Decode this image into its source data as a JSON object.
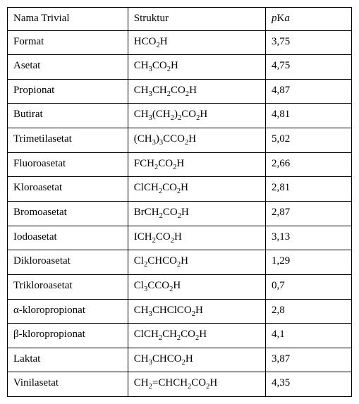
{
  "table": {
    "columns": [
      {
        "label": "Nama Trivial",
        "width_pct": 35,
        "align": "left"
      },
      {
        "label": "Struktur",
        "width_pct": 40,
        "align": "left"
      },
      {
        "label_html": "<span class='p-ital'>p</span>K<span class='a-ital'>a</span>",
        "width_pct": 25,
        "align": "left"
      }
    ],
    "rows": [
      {
        "name": "Format",
        "struct_html": "HCO<sub>2</sub>H",
        "pka": "3,75"
      },
      {
        "name": "Asetat",
        "struct_html": "CH<sub>3</sub>CO<sub>2</sub>H",
        "pka": "4,75"
      },
      {
        "name": "Propionat",
        "struct_html": "CH<sub>3</sub>CH<sub>2</sub>CO<sub>2</sub>H",
        "pka": "4,87"
      },
      {
        "name": "Butirat",
        "struct_html": "CH<sub>3</sub>(CH<sub>2</sub>)<sub>2</sub>CO<sub>2</sub>H",
        "pka": "4,81"
      },
      {
        "name": "Trimetilasetat",
        "struct_html": "(CH<sub>3</sub>)<sub>3</sub>CCO<sub>2</sub>H",
        "pka": "5,02"
      },
      {
        "name": "Fluoroasetat",
        "struct_html": "FCH<sub>2</sub>CO<sub>2</sub>H",
        "pka": "2,66"
      },
      {
        "name": "Kloroasetat",
        "struct_html": "ClCH<sub>2</sub>CO<sub>2</sub>H",
        "pka": "2,81"
      },
      {
        "name": "Bromoasetat",
        "struct_html": "BrCH<sub>2</sub>CO<sub>2</sub>H",
        "pka": "2,87"
      },
      {
        "name": "Iodoasetat",
        "struct_html": "ICH<sub>2</sub>CO<sub>2</sub>H",
        "pka": "3,13"
      },
      {
        "name": "Dikloroasetat",
        "struct_html": "Cl<sub>2</sub>CHCO<sub>2</sub>H",
        "pka": "1,29"
      },
      {
        "name": "Trikloroasetat",
        "struct_html": "Cl<sub>3</sub>CCO<sub>2</sub>H",
        "pka": "0,7"
      },
      {
        "name": "α-kloropropionat",
        "struct_html": "CH<sub>3</sub>CHClCO<sub>2</sub>H",
        "pka": "2,8"
      },
      {
        "name": "β-kloropropionat",
        "struct_html": "ClCH<sub>2</sub>CH<sub>2</sub>CO<sub>2</sub>H",
        "pka": "4,1"
      },
      {
        "name": "Laktat",
        "struct_html": "CH<sub>3</sub>CHCO<sub>2</sub>H",
        "pka": "3,87"
      },
      {
        "name": "Vinilasetat",
        "struct_html": "CH<sub>2</sub>=CHCH<sub>2</sub>CO<sub>2</sub>H",
        "pka": "4,35"
      }
    ],
    "style": {
      "font_family": "Times New Roman",
      "font_size_pt": 11,
      "border_color": "#000000",
      "background_color": "#ffffff",
      "text_color": "#000000"
    }
  }
}
